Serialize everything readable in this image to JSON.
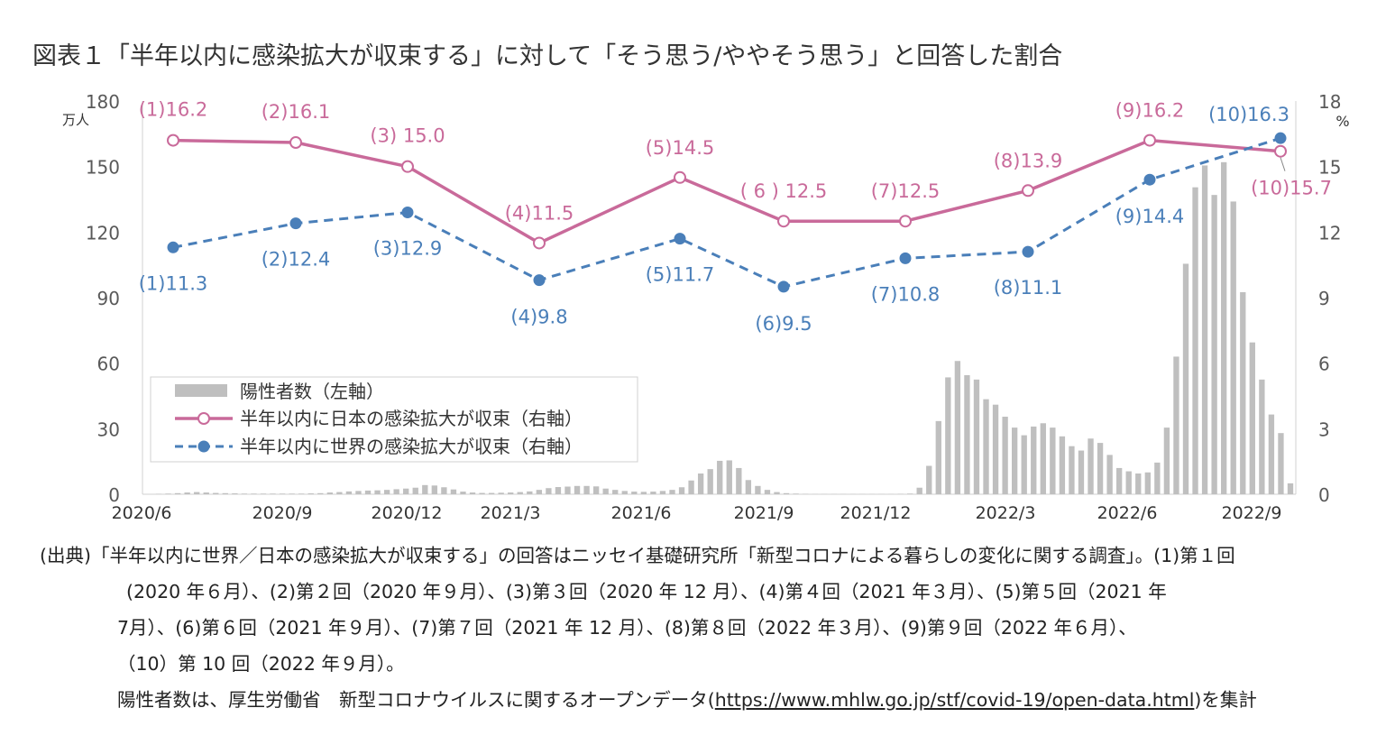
{
  "title": "図表１「半年以内に感染拡大が収束する」に対して「そう思う/ややそう思う」と回答した割合",
  "chart_data": {
    "type": "bar+line",
    "left_axis_unit": "万人",
    "right_axis_unit": "%",
    "left_axis": {
      "min": 0,
      "max": 180,
      "ticks": [
        0,
        30,
        60,
        90,
        120,
        150,
        180
      ]
    },
    "right_axis": {
      "min": 0,
      "max": 18,
      "ticks": [
        0,
        3,
        6,
        9,
        12,
        15,
        18
      ]
    },
    "x_labels": [
      "2020/6",
      "2020/9",
      "2020/12",
      "2021/3",
      "2021/6",
      "2021/9",
      "2021/12",
      "2022/3",
      "2022/6",
      "2022/9"
    ],
    "bars": {
      "name": "陽性者数（左軸）",
      "color": "#bfbfbf",
      "note": "weekly values, 2020/6 through 2022/9",
      "values": [
        0.2,
        0.3,
        0.5,
        0.8,
        1.0,
        0.8,
        0.6,
        0.5,
        0.4,
        0.3,
        0.3,
        0.3,
        0.3,
        0.3,
        0.3,
        0.3,
        0.4,
        0.5,
        0.8,
        1.0,
        1.3,
        1.5,
        1.7,
        1.8,
        2.0,
        2.3,
        2.6,
        3.0,
        4.2,
        4.0,
        3.2,
        2.2,
        1.2,
        0.8,
        0.6,
        0.6,
        0.7,
        0.8,
        1.0,
        1.3,
        2.0,
        2.8,
        3.3,
        3.5,
        3.8,
        3.8,
        3.6,
        2.6,
        2.0,
        1.5,
        1.2,
        1.1,
        1.2,
        1.5,
        2.0,
        3.2,
        6.3,
        9.5,
        11.5,
        15.3,
        15.5,
        12.0,
        6.5,
        3.8,
        2.0,
        1.0,
        0.5,
        0.3,
        0.2,
        0.1,
        0.1,
        0.1,
        0.1,
        0.1,
        0.1,
        0.1,
        0.1,
        0.1,
        0.2,
        0.3,
        3.0,
        13.0,
        33.5,
        53.5,
        61.0,
        54.5,
        52.5,
        43.5,
        41.0,
        35.5,
        30.5,
        27.0,
        31.0,
        32.5,
        30.5,
        26.5,
        22.0,
        20.0,
        25.5,
        23.5,
        18.0,
        12.0,
        10.5,
        9.5,
        10.0,
        14.5,
        30.5,
        63.0,
        105.5,
        140.5,
        150.5,
        137.0,
        152.0,
        134.0,
        92.5,
        69.5,
        52.5,
        36.5,
        28.0,
        5.0
      ]
    },
    "series": [
      {
        "name": "半年以内に日本の感染拡大が収束（右軸）",
        "color": "#c96a9a",
        "style": "solid, open circle markers",
        "values": [
          16.2,
          16.1,
          15.0,
          11.5,
          14.5,
          12.5,
          12.5,
          13.9,
          16.2,
          15.7
        ],
        "labels": [
          "(1)16.2",
          "(2)16.1",
          "(3)  15.0",
          "(4)11.5",
          "(5)14.5",
          "( 6 )  12.5",
          "(7)12.5",
          "(8)13.9",
          "(9)16.2",
          "(10)15.7"
        ]
      },
      {
        "name": "半年以内に世界の感染拡大が収束（右軸）",
        "color": "#4a7fb9",
        "style": "dashed, filled circle markers",
        "values": [
          11.3,
          12.4,
          12.9,
          9.8,
          11.7,
          9.5,
          10.8,
          11.1,
          14.4,
          16.3
        ],
        "labels": [
          "(1)11.3",
          "(2)12.4",
          "(3)12.9",
          "(4)9.8",
          "(5)11.7",
          "(6)9.5",
          "(7)10.8",
          "(8)11.1",
          "(9)14.4",
          "(10)16.3"
        ]
      }
    ],
    "legend_position": "lower-left"
  },
  "note": {
    "line1": "(出典)「半年以内に世界／日本の感染拡大が収束する」の回答はニッセイ基礎研究所「新型コロナによる暮らしの変化に関する調査」。(1)第１回",
    "line2": "(2020 年６月）、(2)第２回（2020 年９月）、(3)第３回（2020 年 12 月）、(4)第４回（2021 年３月）、(5)第５回（2021 年",
    "line3": "7月）、(6)第６回（2021 年９月）、(7)第７回（2021 年 12 月）、(8)第８回（2022 年３月）、(9)第９回（2022 年６月）、",
    "line4": "（10）第 10 回（2022 年９月）。",
    "line5_pre": "陽性者数は、厚生労働省　新型コロナウイルスに関するオープンデータ(",
    "line5_url": "https://www.mhlw.go.jp/stf/covid-19/open-data.html",
    "line5_post": ")を集計"
  }
}
